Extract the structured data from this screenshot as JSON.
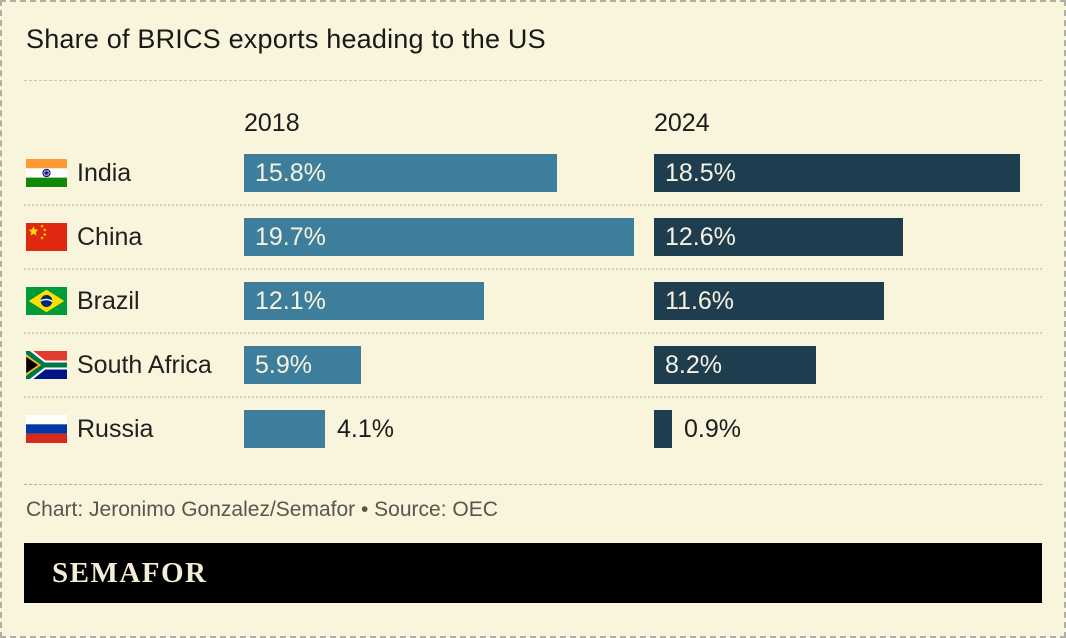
{
  "title": "Share of BRICS exports heading to the US",
  "chart_data": {
    "type": "bar",
    "orientation": "horizontal",
    "unit": "%",
    "title": "Share of BRICS exports heading to the US",
    "categories": [
      "India",
      "China",
      "Brazil",
      "South Africa",
      "Russia"
    ],
    "flags": [
      "india",
      "china",
      "brazil",
      "south-africa",
      "russia"
    ],
    "series": [
      {
        "name": "2018",
        "color": "#3c7e9b",
        "values": [
          15.8,
          19.7,
          12.1,
          5.9,
          4.1
        ],
        "labels": [
          "15.8%",
          "19.7%",
          "12.1%",
          "5.9%",
          "4.1%"
        ]
      },
      {
        "name": "2024",
        "color": "#1e3e50",
        "values": [
          18.5,
          12.6,
          11.6,
          8.2,
          0.9
        ],
        "labels": [
          "18.5%",
          "12.6%",
          "11.6%",
          "8.2%",
          "0.9%"
        ]
      }
    ],
    "x_axis_shown": false,
    "grid": false,
    "legend_position": "column-headers"
  },
  "colors": {
    "background": "#f9f4dc",
    "bar_2018": "#3c7e9b",
    "bar_2024": "#1e3e50",
    "brand_bar": "#000000",
    "in_bar_text": "#f7f2e1",
    "text": "#1c1c1c"
  },
  "footer": {
    "credit": "Chart: Jeronimo Gonzalez/Semafor • Source: OEC",
    "brand": "SEMAFOR"
  }
}
